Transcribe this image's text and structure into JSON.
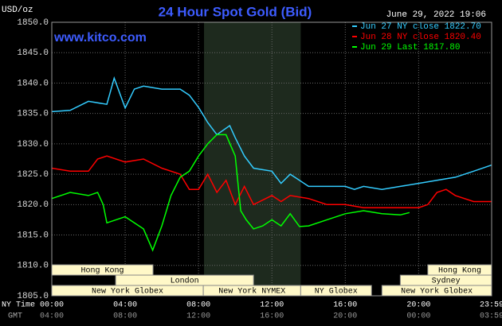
{
  "chart_data": {
    "type": "line",
    "title": "24 Hour Spot Gold (Bid)",
    "watermark": "www.kitco.com",
    "timestamp": "June 29, 2022 19:06",
    "y_label": "USD/oz",
    "x_label": "NY Time",
    "x2_label": "GMT",
    "ylim": [
      1805,
      1850
    ],
    "yticks": [
      {
        "value": 1805,
        "label": "1805.0"
      },
      {
        "value": 1810,
        "label": "1810.0"
      },
      {
        "value": 1815,
        "label": "1815.0"
      },
      {
        "value": 1820,
        "label": "1820.0"
      },
      {
        "value": 1825,
        "label": "1825.0"
      },
      {
        "value": 1830,
        "label": "1830.0"
      },
      {
        "value": 1835,
        "label": "1835.0"
      },
      {
        "value": 1840,
        "label": "1840.0"
      },
      {
        "value": 1845,
        "label": "1845.0"
      },
      {
        "value": 1850,
        "label": "1850.0"
      }
    ],
    "xlim": [
      0,
      23.98
    ],
    "xticks": [
      {
        "value": 0,
        "label": "00:00"
      },
      {
        "value": 4,
        "label": "04:00"
      },
      {
        "value": 8,
        "label": "08:00"
      },
      {
        "value": 12,
        "label": "12:00"
      },
      {
        "value": 16,
        "label": "16:00"
      },
      {
        "value": 20,
        "label": "20:00"
      },
      {
        "value": 23.98,
        "label": "23:59"
      }
    ],
    "x2ticks": [
      {
        "value": 0,
        "label": "04:00"
      },
      {
        "value": 4,
        "label": "08:00"
      },
      {
        "value": 8,
        "label": "12:00"
      },
      {
        "value": 12,
        "label": "16:00"
      },
      {
        "value": 16,
        "label": "20:00"
      },
      {
        "value": 20,
        "label": "00:00"
      },
      {
        "value": 23.98,
        "label": "03:59"
      }
    ],
    "grid": true,
    "highlight": [
      8.3,
      13.57
    ],
    "sessions": [
      {
        "label": "Hong Kong",
        "start": 0,
        "end": 5.52,
        "row": 0
      },
      {
        "label": "London",
        "start": 3.48,
        "end": 11,
        "row": 1
      },
      {
        "label": "New York Globex",
        "start": 0,
        "end": 8.26,
        "row": 2
      },
      {
        "label": "New York NYMEX",
        "start": 8.26,
        "end": 13.57,
        "row": 2
      },
      {
        "label": "NY Globex",
        "start": 13.57,
        "end": 17.43,
        "row": 2
      },
      {
        "label": "Hong Kong",
        "start": 20.5,
        "end": 23.98,
        "row": 0
      },
      {
        "label": "Sydney",
        "start": 19,
        "end": 23.98,
        "row": 1
      },
      {
        "label": "New York Globex",
        "start": 18,
        "end": 23.98,
        "row": 2
      }
    ],
    "series": [
      {
        "name": "Jun 27 NY close 1822.70",
        "color": "#33ccff",
        "x": [
          0,
          1,
          2,
          3,
          3.4,
          4,
          4.5,
          5,
          6,
          7,
          7.5,
          8,
          8.5,
          9,
          9.7,
          10,
          10.5,
          11,
          12,
          12.5,
          13,
          13.5,
          14,
          15,
          16,
          16.5,
          17,
          18,
          19,
          20,
          21,
          22,
          23,
          23.98
        ],
        "values": [
          1835.3,
          1835.5,
          1837,
          1836.5,
          1840.8,
          1835.9,
          1839,
          1839.5,
          1839,
          1839,
          1838,
          1836,
          1833.5,
          1831.5,
          1833,
          1831,
          1828,
          1826,
          1825.5,
          1823.5,
          1825,
          1824,
          1823,
          1823,
          1823,
          1822.5,
          1823,
          1822.5,
          1823,
          1823.5,
          1824,
          1824.5,
          1825.5,
          1826.5
        ]
      },
      {
        "name": "Jun 28 NY close 1820.40",
        "color": "#ff0000",
        "x": [
          0,
          1,
          2,
          2.5,
          3,
          4,
          5,
          6,
          7,
          7.5,
          8,
          8.5,
          9,
          9.5,
          10,
          10.5,
          11,
          12,
          12.5,
          13,
          14,
          15,
          16,
          17,
          18,
          19,
          20,
          20.5,
          21,
          21.5,
          22,
          23,
          23.98
        ],
        "values": [
          1826,
          1825.5,
          1825.5,
          1827.5,
          1828,
          1827,
          1827.5,
          1826,
          1825,
          1822.5,
          1822.5,
          1825,
          1822,
          1824,
          1820,
          1823,
          1820,
          1821.5,
          1820.5,
          1821.5,
          1821,
          1820,
          1820,
          1819.5,
          1819.5,
          1819.5,
          1819.5,
          1820,
          1822,
          1822.5,
          1821.5,
          1820.5,
          1820.5
        ]
      },
      {
        "name": "Jun 29 Last 1817.80",
        "color": "#00ff00",
        "x": [
          0,
          1,
          2,
          2.5,
          2.8,
          3,
          4,
          5,
          5.5,
          6,
          6.5,
          7,
          7.5,
          8,
          8.5,
          9,
          9.5,
          10,
          10.3,
          10.6,
          11,
          11.5,
          12,
          12.5,
          13,
          13.5,
          14,
          15,
          16,
          17,
          18,
          19,
          19.5
        ],
        "values": [
          1821,
          1822,
          1821.5,
          1822,
          1820,
          1817,
          1818,
          1816,
          1812.5,
          1816.5,
          1821.5,
          1824.5,
          1825.5,
          1828,
          1830,
          1831.5,
          1831.5,
          1828,
          1819,
          1817.5,
          1816,
          1816.5,
          1817.5,
          1816.5,
          1818.5,
          1816.4,
          1816.5,
          1817.5,
          1818.5,
          1819,
          1818.5,
          1818.3,
          1818.7
        ]
      }
    ]
  }
}
